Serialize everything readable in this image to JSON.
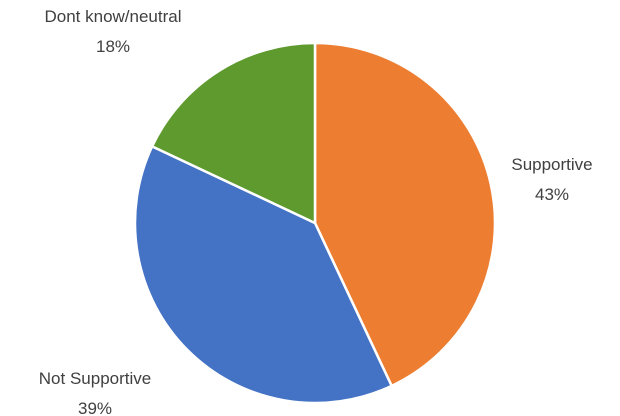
{
  "chart_data": {
    "type": "pie",
    "title": "",
    "categories": [
      "Supportive",
      "Not Supportive",
      "Dont know/neutral"
    ],
    "values": [
      43,
      39,
      18
    ],
    "value_labels": [
      "43%",
      "39%",
      "18%"
    ],
    "colors": [
      "#ED7D31",
      "#4472C4",
      "#5E9A2E"
    ],
    "start_angle_deg": 0,
    "direction": "clockwise",
    "legend": "none",
    "labels_position": "outside"
  }
}
